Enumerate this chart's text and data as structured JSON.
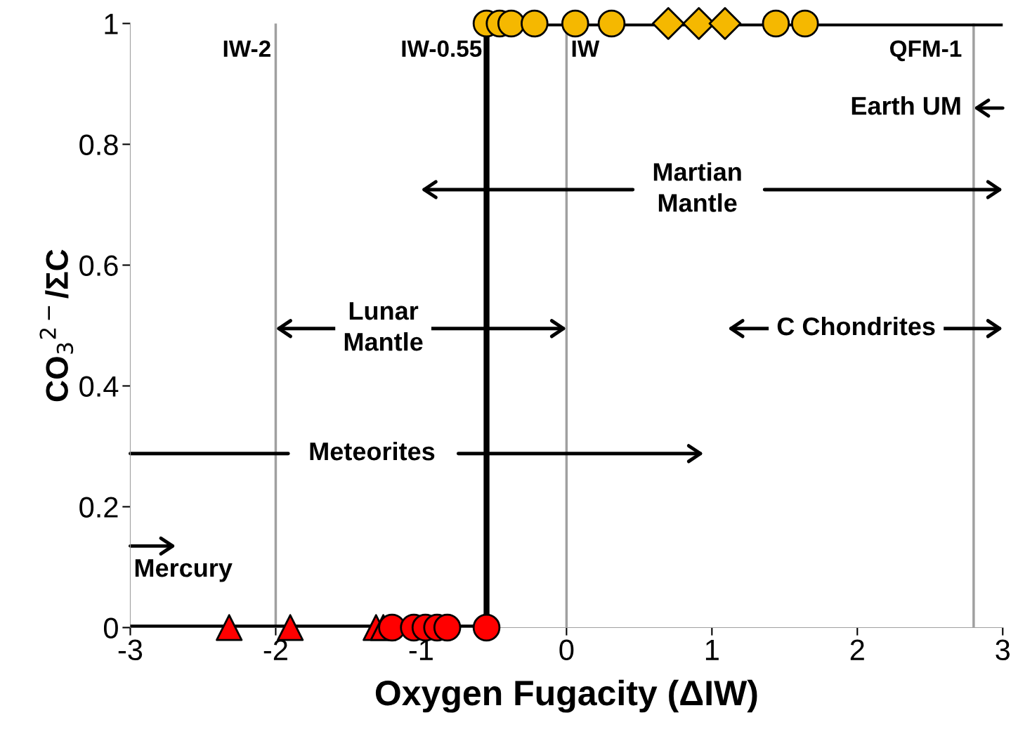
{
  "chart_data": {
    "type": "scatter",
    "xlabel": "Oxygen Fugacity (ΔIW)",
    "ylabel": "CO$_{3}$$^{2−}$/ΣC",
    "xlim": [
      -3,
      3
    ],
    "ylim": [
      0,
      1
    ],
    "xticks": [
      -3,
      -2,
      -1,
      0,
      1,
      2,
      3
    ],
    "yticks": [
      0,
      0.2,
      0.4,
      0.6,
      0.8,
      1
    ],
    "grid": false,
    "legend": false,
    "annotations": [
      {
        "text": "IW-0.55",
        "x": -0.55,
        "y": 1
      },
      "Earth UM",
      "Martian\nMantle",
      "Lunar\nMantle",
      "C Chondrites",
      "Meteorites",
      "Mercury"
    ],
    "series": [
      {
        "type": "line",
        "color": "#000000",
        "marker": "none",
        "line_style": "solid",
        "x": [
          -3,
          -0.55,
          -0.55,
          3
        ],
        "values": [
          0,
          0,
          1,
          1
        ]
      },
      {
        "color": "#ff0000",
        "marker": "triangle",
        "x": [
          -2.32,
          -1.9,
          -1.31,
          -1.26
        ],
        "values": [
          0,
          0,
          0,
          0
        ]
      },
      {
        "color": "#ff0000",
        "marker": "circle",
        "x": [
          -1.2,
          -1.05,
          -0.97,
          -0.89,
          -0.82,
          -0.55
        ],
        "values": [
          0,
          0,
          0,
          0,
          0,
          0
        ]
      },
      {
        "color": "#f5b800",
        "marker": "circle",
        "x": [
          -0.55,
          -0.46,
          -0.38,
          -0.22,
          0.06,
          0.31,
          1.44,
          1.64
        ],
        "values": [
          1,
          1,
          1,
          1,
          1,
          1,
          1,
          1
        ]
      },
      {
        "color": "#f5b800",
        "marker": "diamond",
        "x": [
          0.7,
          0.91,
          1.09
        ],
        "values": [
          1,
          1,
          1
        ]
      }
    ],
    "ref_lines": [
      {
        "axis": "x",
        "value": -2,
        "label": "IW-2",
        "color": "#a0a0a0"
      },
      {
        "axis": "x",
        "value": 0,
        "label": "IW",
        "color": "#a0a0a0"
      },
      {
        "axis": "x",
        "value": 2.8,
        "label": "QFM-1",
        "color": "#a0a0a0"
      }
    ]
  }
}
